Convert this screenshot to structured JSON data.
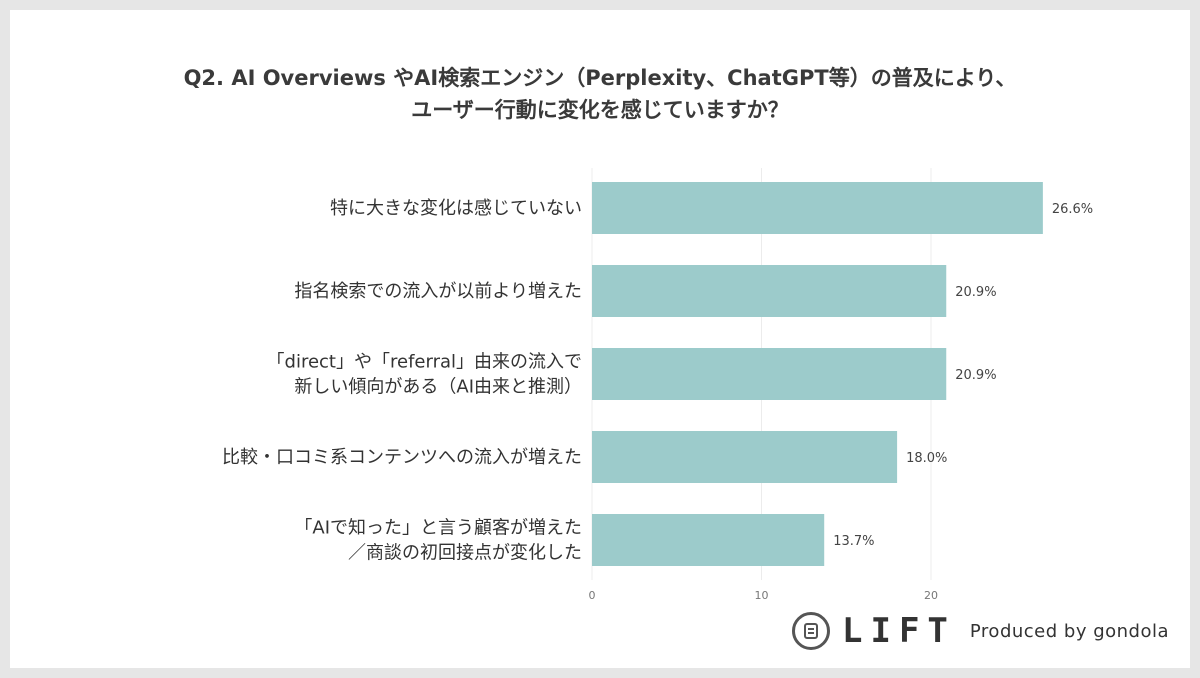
{
  "title": {
    "line1": "Q2. AI Overviews やAI検索エンジン（Perplexity、ChatGPT等）の普及により、",
    "line2": "ユーザー行動に変化を感じていますか？"
  },
  "chart_data": {
    "type": "bar",
    "orientation": "horizontal",
    "categories": [
      [
        "特に大きな変化は感じていない"
      ],
      [
        "指名検索での流入が以前より増えた"
      ],
      [
        "「direct」や「referral」由来の流入で",
        "新しい傾向がある（AI由来と推測）"
      ],
      [
        "比較・口コミ系コンテンツへの流入が増えた"
      ],
      [
        "「AIで知った」と言う顧客が増えた",
        "／商談の初回接点が変化した"
      ]
    ],
    "values": [
      26.6,
      20.9,
      20.9,
      18.0,
      13.7
    ],
    "value_labels": [
      "26.6%",
      "20.9%",
      "20.9%",
      "18.0%",
      "13.7%"
    ],
    "xlim": [
      0,
      30
    ],
    "xticks": [
      0,
      10,
      20
    ],
    "xtick_labels": [
      "0",
      "10",
      "20"
    ],
    "grid": true,
    "bar_color": "#9ccbcb",
    "grid_color": "#ececec"
  },
  "footer": {
    "logo_text": "LIFT",
    "produced_by": "Produced by gondola"
  }
}
